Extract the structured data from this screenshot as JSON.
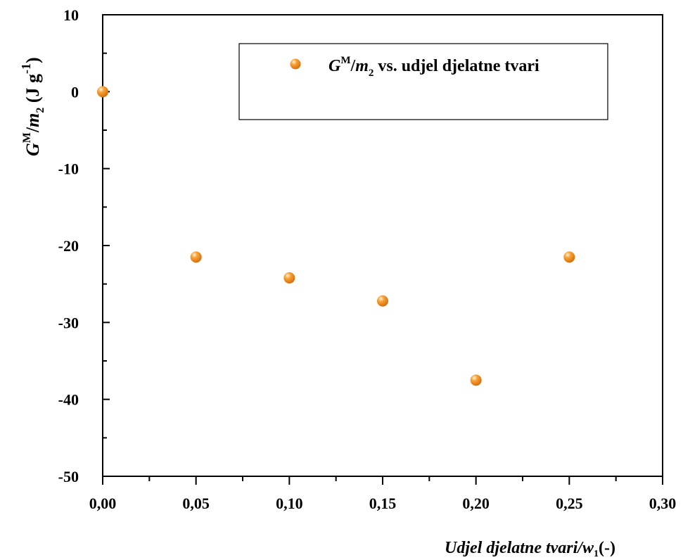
{
  "chart_data": {
    "type": "scatter",
    "x": [
      0.0,
      0.05,
      0.1,
      0.15,
      0.2,
      0.25
    ],
    "series": [
      {
        "name_parts": {
          "g": "G",
          "g_sup": "M",
          "slash": "/",
          "m": "m",
          "m_sub": "2",
          "rest": " vs. udjel djelatne tvari"
        },
        "values": [
          0.0,
          -21.5,
          -24.2,
          -27.2,
          -37.5,
          -21.5
        ],
        "color": "#f28a1e"
      }
    ],
    "xlim": [
      0.0,
      0.3
    ],
    "ylim": [
      -50,
      10
    ],
    "x_ticks": [
      {
        "value": 0.0,
        "label": "0,00"
      },
      {
        "value": 0.05,
        "label": "0,05"
      },
      {
        "value": 0.1,
        "label": "0,10"
      },
      {
        "value": 0.15,
        "label": "0,15"
      },
      {
        "value": 0.2,
        "label": "0,20"
      },
      {
        "value": 0.25,
        "label": "0,25"
      },
      {
        "value": 0.3,
        "label": "0,30"
      }
    ],
    "y_ticks": [
      {
        "value": 10,
        "label": "10"
      },
      {
        "value": 0,
        "label": "0"
      },
      {
        "value": -10,
        "label": "-10"
      },
      {
        "value": -20,
        "label": "-20"
      },
      {
        "value": -30,
        "label": "-30"
      },
      {
        "value": -40,
        "label": "-40"
      },
      {
        "value": -50,
        "label": "-50"
      }
    ],
    "xlabel_parts": {
      "main": "Udjel djelatne tvari/",
      "w": "w",
      "w_sub": "1",
      "unit": "(-)"
    },
    "ylabel_parts": {
      "g": "G",
      "g_sup": "M",
      "slash": "/",
      "m": "m",
      "m_sub": "2",
      "unit": " (J g",
      "unit_sup": "-1",
      "close": ")"
    },
    "grid": false,
    "legend": "top-right"
  }
}
